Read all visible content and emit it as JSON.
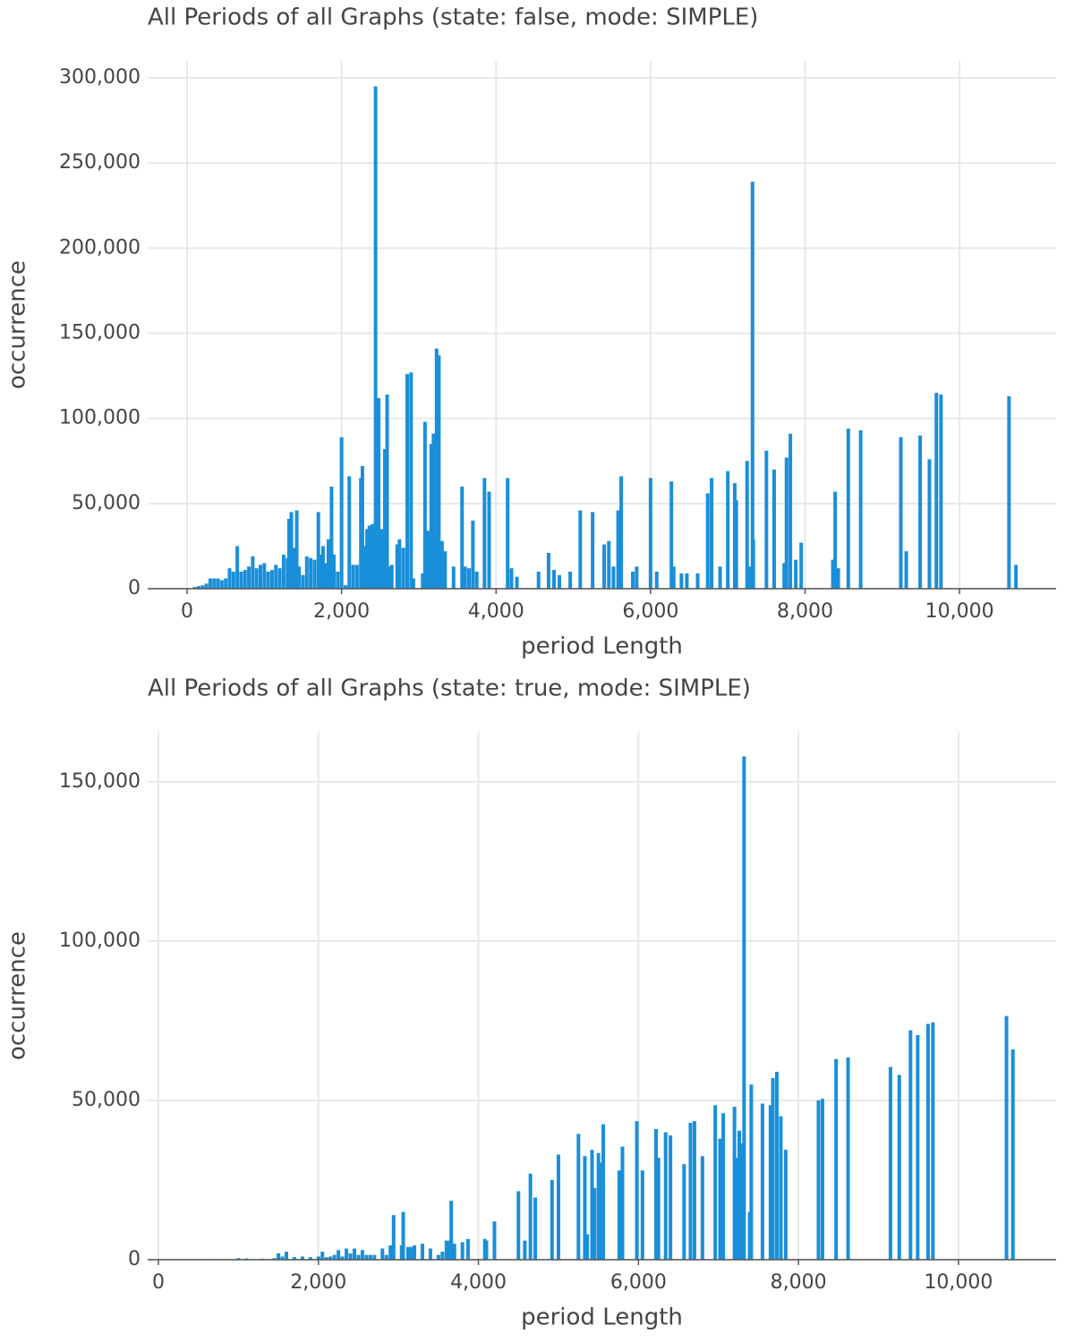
{
  "chart_data": [
    {
      "type": "bar",
      "title": "All Periods of all Graphs (state: false, mode: SIMPLE)",
      "x_label": "period Length",
      "y_label": "occurrence",
      "color": "#1a8fd9",
      "grid": true,
      "x": [
        100,
        150,
        200,
        250,
        300,
        350,
        400,
        450,
        500,
        550,
        600,
        650,
        700,
        750,
        800,
        850,
        900,
        950,
        1000,
        1050,
        1100,
        1150,
        1200,
        1250,
        1300,
        1320,
        1350,
        1380,
        1420,
        1450,
        1500,
        1550,
        1600,
        1650,
        1700,
        1730,
        1760,
        1800,
        1830,
        1870,
        1900,
        1950,
        2000,
        2050,
        2100,
        2150,
        2200,
        2250,
        2270,
        2300,
        2330,
        2360,
        2400,
        2440,
        2480,
        2520,
        2560,
        2590,
        2630,
        2650,
        2720,
        2750,
        2800,
        2850,
        2900,
        2930,
        3050,
        3080,
        3120,
        3160,
        3190,
        3230,
        3260,
        3300,
        3340,
        3450,
        3560,
        3600,
        3650,
        3700,
        3750,
        3850,
        3910,
        4150,
        4200,
        4270,
        4550,
        4680,
        4750,
        4820,
        4960,
        5090,
        5250,
        5400,
        5460,
        5520,
        5580,
        5620,
        5770,
        5820,
        6000,
        6080,
        6270,
        6300,
        6400,
        6470,
        6610,
        6740,
        6790,
        6900,
        7000,
        7090,
        7110,
        7250,
        7290,
        7330,
        7320,
        7500,
        7600,
        7730,
        7760,
        7810,
        7880,
        7950,
        8360,
        8390,
        8430,
        8560,
        8720,
        9240,
        9310,
        9490,
        9610,
        9700,
        9760,
        10640,
        10730
      ],
      "values": [
        1000,
        1500,
        2000,
        3000,
        6000,
        6000,
        6000,
        5000,
        6000,
        12000,
        10000,
        25000,
        10000,
        11000,
        13000,
        19000,
        12000,
        14000,
        15000,
        10000,
        11000,
        14000,
        12000,
        20000,
        18000,
        41000,
        45000,
        24000,
        46000,
        13000,
        8000,
        19000,
        18000,
        17000,
        45000,
        20000,
        25000,
        15000,
        29000,
        60000,
        20000,
        10000,
        89000,
        2000,
        66000,
        14000,
        14000,
        65000,
        72000,
        25000,
        35000,
        37000,
        38000,
        295000,
        112000,
        35000,
        82000,
        114000,
        13000,
        14000,
        26000,
        29000,
        24000,
        126000,
        127000,
        6000,
        9000,
        98000,
        34000,
        85000,
        91000,
        141000,
        137000,
        28000,
        22000,
        13000,
        60000,
        13000,
        12000,
        40000,
        10000,
        65000,
        57000,
        65000,
        12000,
        7000,
        10000,
        21000,
        11000,
        8000,
        10000,
        46000,
        45000,
        26000,
        28000,
        13000,
        46000,
        66000,
        10000,
        13000,
        65000,
        10000,
        63000,
        13000,
        9000,
        9000,
        9000,
        56000,
        65000,
        13000,
        69000,
        62000,
        52000,
        75000,
        13000,
        29000,
        239000,
        81000,
        70000,
        15000,
        77000,
        91000,
        17000,
        27000,
        17000,
        57000,
        12000,
        94000,
        93000,
        89000,
        22000,
        90000,
        76000,
        115000,
        114000,
        113000,
        14000
      ],
      "xlim": [
        -510,
        11250
      ],
      "ylim": [
        0,
        310000
      ],
      "xticks": [
        0,
        {
          "value": 2000,
          "label": "2,000"
        },
        {
          "value": 4000,
          "label": "4,000"
        },
        {
          "value": 6000,
          "label": "6,000"
        },
        {
          "value": 8000,
          "label": "8,000"
        },
        {
          "value": 10000,
          "label": "10,000"
        }
      ],
      "yticks": [
        0,
        {
          "value": 50000,
          "label": "50,000"
        },
        {
          "value": 100000,
          "label": "100,000"
        },
        {
          "value": 150000,
          "label": "150,000"
        },
        {
          "value": 200000,
          "label": "200,000"
        },
        {
          "value": 250000,
          "label": "250,000"
        },
        {
          "value": 300000,
          "label": "300,000"
        }
      ]
    },
    {
      "type": "bar",
      "title": "All Periods of all Graphs (state: true, mode: SIMPLE)",
      "x_label": "period Length",
      "y_label": "occurrence",
      "color": "#1a8fd9",
      "grid": true,
      "x": [
        700,
        1000,
        1100,
        1300,
        1450,
        1500,
        1550,
        1600,
        1700,
        1800,
        1900,
        2000,
        2050,
        2100,
        2150,
        2200,
        2250,
        2300,
        2350,
        2400,
        2450,
        2500,
        2550,
        2600,
        2650,
        2700,
        2800,
        2850,
        2900,
        2940,
        3040,
        3060,
        3120,
        3160,
        3200,
        3300,
        3400,
        3500,
        3550,
        3600,
        3640,
        3660,
        3700,
        3800,
        3870,
        4080,
        4100,
        4200,
        4500,
        4580,
        4650,
        4710,
        4920,
        5000,
        5250,
        5330,
        5360,
        5420,
        5450,
        5500,
        5540,
        5560,
        5760,
        5800,
        5980,
        6050,
        6220,
        6250,
        6340,
        6400,
        6570,
        6650,
        6700,
        6800,
        6960,
        7020,
        7060,
        7200,
        7230,
        7260,
        7290,
        7320,
        7390,
        7410,
        7550,
        7650,
        7680,
        7730,
        7780,
        7840,
        8250,
        8300,
        8470,
        8620,
        9150,
        9260,
        9400,
        9490,
        9620,
        9680,
        10600,
        10680
      ],
      "values": [
        200,
        500,
        400,
        300,
        500,
        2000,
        1000,
        2500,
        800,
        1000,
        800,
        1000,
        2500,
        800,
        1000,
        1500,
        3000,
        1000,
        3500,
        2000,
        3500,
        1500,
        3000,
        1500,
        1500,
        1500,
        3500,
        1500,
        4500,
        14000,
        4500,
        15000,
        4000,
        4000,
        4500,
        5000,
        3500,
        1500,
        2500,
        6000,
        6000,
        18500,
        5000,
        5500,
        6500,
        6500,
        6000,
        12000,
        21500,
        6000,
        27000,
        19500,
        25000,
        33000,
        39500,
        32500,
        8000,
        34500,
        22500,
        33500,
        30500,
        42500,
        28000,
        35500,
        43500,
        28000,
        41000,
        32000,
        40000,
        39000,
        30000,
        43000,
        43500,
        32500,
        48500,
        38000,
        46000,
        48000,
        32000,
        40500,
        36500,
        158000,
        15000,
        55000,
        49000,
        48500,
        57000,
        59000,
        45000,
        34500,
        50000,
        50500,
        63000,
        63500,
        60500,
        58000,
        72000,
        70500,
        74000,
        74500,
        76500,
        66000
      ],
      "xlim": [
        -134,
        11220
      ],
      "ylim": [
        0,
        165700
      ],
      "xticks": [
        0,
        {
          "value": 2000,
          "label": "2,000"
        },
        {
          "value": 4000,
          "label": "4,000"
        },
        {
          "value": 6000,
          "label": "6,000"
        },
        {
          "value": 8000,
          "label": "8,000"
        },
        {
          "value": 10000,
          "label": "10,000"
        }
      ],
      "yticks": [
        0,
        {
          "value": 50000,
          "label": "50,000"
        },
        {
          "value": 100000,
          "label": "100,000"
        },
        {
          "value": 150000,
          "label": "150,000"
        }
      ]
    }
  ]
}
